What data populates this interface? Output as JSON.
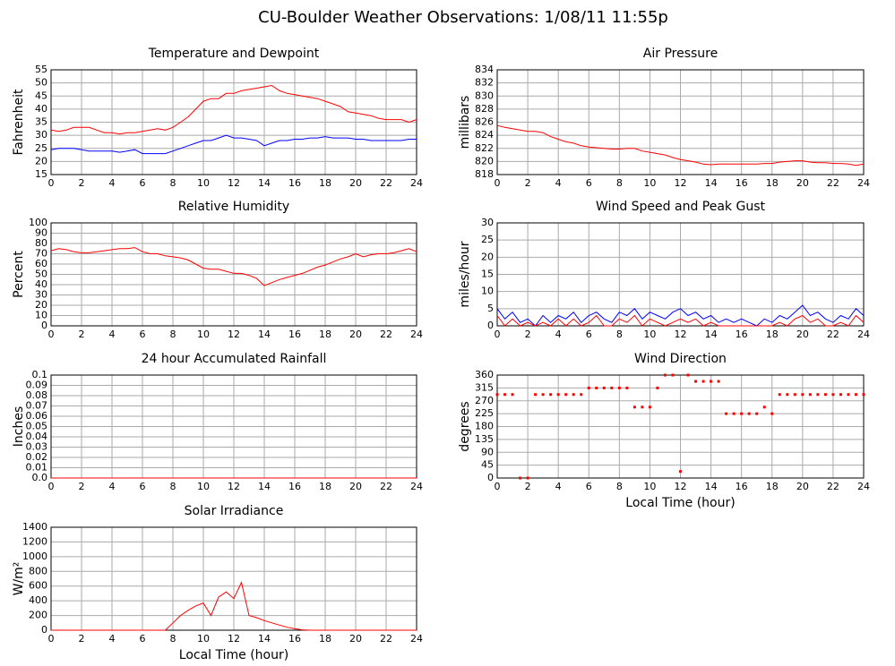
{
  "title": "CU-Boulder Weather Observations: 1/08/11 11:55p",
  "chart_data": [
    {
      "type": "line",
      "title": "Temperature and Dewpoint",
      "ylabel": "Fahrenheit",
      "x": [
        0,
        0.5,
        1,
        1.5,
        2,
        2.5,
        3,
        3.5,
        4,
        4.5,
        5,
        5.5,
        6,
        6.5,
        7,
        7.5,
        8,
        8.5,
        9,
        9.5,
        10,
        10.5,
        11,
        11.5,
        12,
        12.5,
        13,
        13.5,
        14,
        14.5,
        15,
        15.5,
        16,
        16.5,
        17,
        17.5,
        18,
        18.5,
        19,
        19.5,
        20,
        20.5,
        21,
        21.5,
        22,
        22.5,
        23,
        23.5,
        24
      ],
      "series": [
        {
          "color": "#ff0000",
          "values": [
            32,
            31.5,
            32,
            33,
            33,
            33,
            32,
            31,
            31,
            30.5,
            31,
            31,
            31.5,
            32,
            32.5,
            32,
            33,
            35,
            37,
            40,
            43,
            44,
            44,
            46,
            46,
            47,
            47.5,
            48,
            48.5,
            49,
            47,
            46,
            45.5,
            45,
            44.5,
            44,
            43,
            42,
            41,
            39,
            38.5,
            38,
            37.5,
            36.5,
            36,
            36,
            36,
            35,
            36
          ]
        },
        {
          "color": "#0000ff",
          "values": [
            24.5,
            25,
            25,
            25,
            24.5,
            24,
            24,
            24,
            24,
            23.5,
            24,
            24.5,
            23,
            23,
            23,
            23,
            24,
            25,
            26,
            27,
            28,
            28,
            29,
            30,
            29,
            29,
            28.5,
            28,
            26,
            27,
            28,
            28,
            28.5,
            28.5,
            29,
            29,
            29.5,
            29,
            29,
            29,
            28.5,
            28.5,
            28,
            28,
            28,
            28,
            28,
            28.5,
            28.5
          ]
        }
      ],
      "xlim": [
        0,
        24
      ],
      "xticks": [
        0,
        2,
        4,
        6,
        8,
        10,
        12,
        14,
        16,
        18,
        20,
        22,
        24
      ],
      "ylim": [
        15,
        55
      ],
      "yticks": [
        15,
        20,
        25,
        30,
        35,
        40,
        45,
        50,
        55
      ],
      "grid": true
    },
    {
      "type": "line",
      "title": "Air Pressure",
      "ylabel": "millibars",
      "x": [
        0,
        0.5,
        1,
        1.5,
        2,
        2.5,
        3,
        3.5,
        4,
        4.5,
        5,
        5.5,
        6,
        6.5,
        7,
        7.5,
        8,
        8.5,
        9,
        9.5,
        10,
        10.5,
        11,
        11.5,
        12,
        12.5,
        13,
        13.5,
        14,
        14.5,
        15,
        15.5,
        16,
        16.5,
        17,
        17.5,
        18,
        18.5,
        19,
        19.5,
        20,
        20.5,
        21,
        21.5,
        22,
        22.5,
        23,
        23.5,
        24
      ],
      "series": [
        {
          "color": "#ff0000",
          "values": [
            825.5,
            825.2,
            825,
            824.8,
            824.6,
            824.6,
            824.4,
            823.8,
            823.4,
            823,
            822.8,
            822.4,
            822.2,
            822.1,
            822,
            821.9,
            821.9,
            822,
            822,
            821.6,
            821.4,
            821.2,
            821,
            820.6,
            820.3,
            820.1,
            819.9,
            819.6,
            819.5,
            819.6,
            819.6,
            819.6,
            819.6,
            819.6,
            819.6,
            819.7,
            819.7,
            819.9,
            820,
            820.1,
            820.1,
            819.9,
            819.8,
            819.8,
            819.7,
            819.7,
            819.6,
            819.4,
            819.6
          ]
        }
      ],
      "xlim": [
        0,
        24
      ],
      "xticks": [
        0,
        2,
        4,
        6,
        8,
        10,
        12,
        14,
        16,
        18,
        20,
        22,
        24
      ],
      "ylim": [
        818,
        834
      ],
      "yticks": [
        818,
        820,
        822,
        824,
        826,
        828,
        830,
        832,
        834
      ],
      "grid": true
    },
    {
      "type": "line",
      "title": "Relative Humidity",
      "ylabel": "Percent",
      "x": [
        0,
        0.5,
        1,
        1.5,
        2,
        2.5,
        3,
        3.5,
        4,
        4.5,
        5,
        5.5,
        6,
        6.5,
        7,
        7.5,
        8,
        8.5,
        9,
        9.5,
        10,
        10.5,
        11,
        11.5,
        12,
        12.5,
        13,
        13.5,
        14,
        14.5,
        15,
        15.5,
        16,
        16.5,
        17,
        17.5,
        18,
        18.5,
        19,
        19.5,
        20,
        20.5,
        21,
        21.5,
        22,
        22.5,
        23,
        23.5,
        24
      ],
      "series": [
        {
          "color": "#ff0000",
          "values": [
            73,
            75,
            74,
            72,
            71,
            71,
            72,
            73,
            74,
            75,
            75,
            76,
            72,
            70,
            70,
            68,
            67,
            66,
            64,
            60,
            56,
            55,
            55,
            53,
            51,
            51,
            49,
            46,
            39,
            42,
            45,
            47,
            49,
            51,
            54,
            57,
            59,
            62,
            65,
            67,
            70,
            67,
            69,
            70,
            70,
            71,
            73,
            75,
            72
          ]
        }
      ],
      "xlim": [
        0,
        24
      ],
      "xticks": [
        0,
        2,
        4,
        6,
        8,
        10,
        12,
        14,
        16,
        18,
        20,
        22,
        24
      ],
      "ylim": [
        0,
        100
      ],
      "yticks": [
        0,
        10,
        20,
        30,
        40,
        50,
        60,
        70,
        80,
        90,
        100
      ],
      "grid": true
    },
    {
      "type": "line",
      "title": "Wind Speed and Peak Gust",
      "ylabel": "miles/hour",
      "x": [
        0,
        0.5,
        1,
        1.5,
        2,
        2.5,
        3,
        3.5,
        4,
        4.5,
        5,
        5.5,
        6,
        6.5,
        7,
        7.5,
        8,
        8.5,
        9,
        9.5,
        10,
        10.5,
        11,
        11.5,
        12,
        12.5,
        13,
        13.5,
        14,
        14.5,
        15,
        15.5,
        16,
        16.5,
        17,
        17.5,
        18,
        18.5,
        19,
        19.5,
        20,
        20.5,
        21,
        21.5,
        22,
        22.5,
        23,
        23.5,
        24
      ],
      "series": [
        {
          "color": "#0000ff",
          "values": [
            5,
            2,
            4,
            1,
            2,
            0,
            3,
            1,
            3,
            2,
            4,
            1,
            3,
            4,
            2,
            1,
            4,
            3,
            5,
            2,
            4,
            3,
            2,
            4,
            5,
            3,
            4,
            2,
            3,
            1,
            2,
            1,
            2,
            1,
            0,
            2,
            1,
            3,
            2,
            4,
            6,
            3,
            4,
            2,
            1,
            3,
            2,
            5,
            3
          ]
        },
        {
          "color": "#ff0000",
          "values": [
            3,
            0,
            2,
            0,
            1,
            0,
            1,
            0,
            2,
            0,
            2,
            0,
            1,
            3,
            0,
            0,
            2,
            1,
            3,
            0,
            2,
            1,
            0,
            1,
            2,
            1,
            2,
            0,
            1,
            0,
            0,
            0,
            0,
            0,
            0,
            0,
            0,
            1,
            0,
            2,
            3,
            1,
            2,
            0,
            0,
            1,
            0,
            3,
            1
          ]
        }
      ],
      "xlim": [
        0,
        24
      ],
      "xticks": [
        0,
        2,
        4,
        6,
        8,
        10,
        12,
        14,
        16,
        18,
        20,
        22,
        24
      ],
      "ylim": [
        0,
        30
      ],
      "yticks": [
        0,
        5,
        10,
        15,
        20,
        25,
        30
      ],
      "grid": true
    },
    {
      "type": "line",
      "title": "24 hour Accumulated Rainfall",
      "ylabel": "Inches",
      "x": [
        0,
        0.5,
        1,
        1.5,
        2,
        2.5,
        3,
        3.5,
        4,
        4.5,
        5,
        5.5,
        6,
        6.5,
        7,
        7.5,
        8,
        8.5,
        9,
        9.5,
        10,
        10.5,
        11,
        11.5,
        12,
        12.5,
        13,
        13.5,
        14,
        14.5,
        15,
        15.5,
        16,
        16.5,
        17,
        17.5,
        18,
        18.5,
        19,
        19.5,
        20,
        20.5,
        21,
        21.5,
        22,
        22.5,
        23,
        23.5,
        24
      ],
      "series": [
        {
          "color": "#ff0000",
          "values": [
            0,
            0,
            0,
            0,
            0,
            0,
            0,
            0,
            0,
            0,
            0,
            0,
            0,
            0,
            0,
            0,
            0,
            0,
            0,
            0,
            0,
            0,
            0,
            0,
            0,
            0,
            0,
            0,
            0,
            0,
            0,
            0,
            0,
            0,
            0,
            0,
            0,
            0,
            0,
            0,
            0,
            0,
            0,
            0,
            0,
            0,
            0,
            0,
            0
          ]
        }
      ],
      "xlim": [
        0,
        24
      ],
      "xticks": [
        0,
        2,
        4,
        6,
        8,
        10,
        12,
        14,
        16,
        18,
        20,
        22,
        24
      ],
      "ylim": [
        0,
        0.1
      ],
      "yticks": [
        {
          "value": 0,
          "label": "0.0"
        },
        0.01,
        0.02,
        0.03,
        0.04,
        0.05,
        0.06,
        0.07,
        0.08,
        0.09,
        0.1
      ],
      "grid": true
    },
    {
      "type": "scatter",
      "title": "Wind Direction",
      "ylabel": "degrees",
      "xlabel": "Local Time (hour)",
      "x": [
        0,
        0.5,
        1,
        1.5,
        2,
        2.5,
        3,
        3.5,
        4,
        4.5,
        5,
        5.5,
        6,
        6.5,
        7,
        7.5,
        8,
        8.5,
        9,
        9.5,
        10,
        10.5,
        11,
        11.5,
        12,
        12.5,
        13,
        13.5,
        14,
        14.5,
        15,
        15.5,
        16,
        16.5,
        17,
        17.5,
        18,
        18.5,
        19,
        19.5,
        20,
        20.5,
        21,
        21.5,
        22,
        22.5,
        23,
        23.5,
        24
      ],
      "series": [
        {
          "color": "#ff0000",
          "values": [
            292,
            292,
            292,
            0,
            0,
            292,
            292,
            292,
            292,
            292,
            292,
            292,
            315,
            315,
            315,
            315,
            315,
            315,
            248,
            248,
            248,
            315,
            360,
            360,
            23,
            360,
            338,
            338,
            338,
            338,
            225,
            225,
            225,
            225,
            225,
            248,
            225,
            292,
            292,
            292,
            292,
            292,
            292,
            292,
            292,
            292,
            292,
            292,
            292
          ]
        }
      ],
      "xlim": [
        0,
        24
      ],
      "xticks": [
        0,
        2,
        4,
        6,
        8,
        10,
        12,
        14,
        16,
        18,
        20,
        22,
        24
      ],
      "ylim": [
        0,
        360
      ],
      "yticks": [
        0,
        45,
        90,
        135,
        180,
        225,
        270,
        315,
        360
      ],
      "grid": true
    },
    {
      "type": "line",
      "title": "Solar Irradiance",
      "ylabel": "W/m²",
      "xlabel": "Local Time (hour)",
      "x": [
        0,
        0.5,
        1,
        1.5,
        2,
        2.5,
        3,
        3.5,
        4,
        4.5,
        5,
        5.5,
        6,
        6.5,
        7,
        7.5,
        8,
        8.5,
        9,
        9.5,
        10,
        10.5,
        11,
        11.5,
        12,
        12.5,
        13,
        13.5,
        14,
        14.5,
        15,
        15.5,
        16,
        16.5,
        17,
        17.5,
        18,
        18.5,
        19,
        19.5,
        20,
        20.5,
        21,
        21.5,
        22,
        22.5,
        23,
        23.5,
        24
      ],
      "series": [
        {
          "color": "#ff0000",
          "values": [
            0,
            0,
            0,
            0,
            0,
            0,
            0,
            0,
            0,
            0,
            0,
            0,
            0,
            0,
            0,
            0,
            100,
            200,
            270,
            330,
            370,
            200,
            450,
            520,
            430,
            650,
            200,
            170,
            130,
            100,
            70,
            40,
            20,
            5,
            0,
            0,
            0,
            0,
            0,
            0,
            0,
            0,
            0,
            0,
            0,
            0,
            0,
            0,
            0
          ]
        }
      ],
      "xlim": [
        0,
        24
      ],
      "xticks": [
        0,
        2,
        4,
        6,
        8,
        10,
        12,
        14,
        16,
        18,
        20,
        22,
        24
      ],
      "ylim": [
        0,
        1400
      ],
      "yticks": [
        0,
        200,
        400,
        600,
        800,
        1000,
        1200,
        1400
      ],
      "grid": true
    }
  ]
}
